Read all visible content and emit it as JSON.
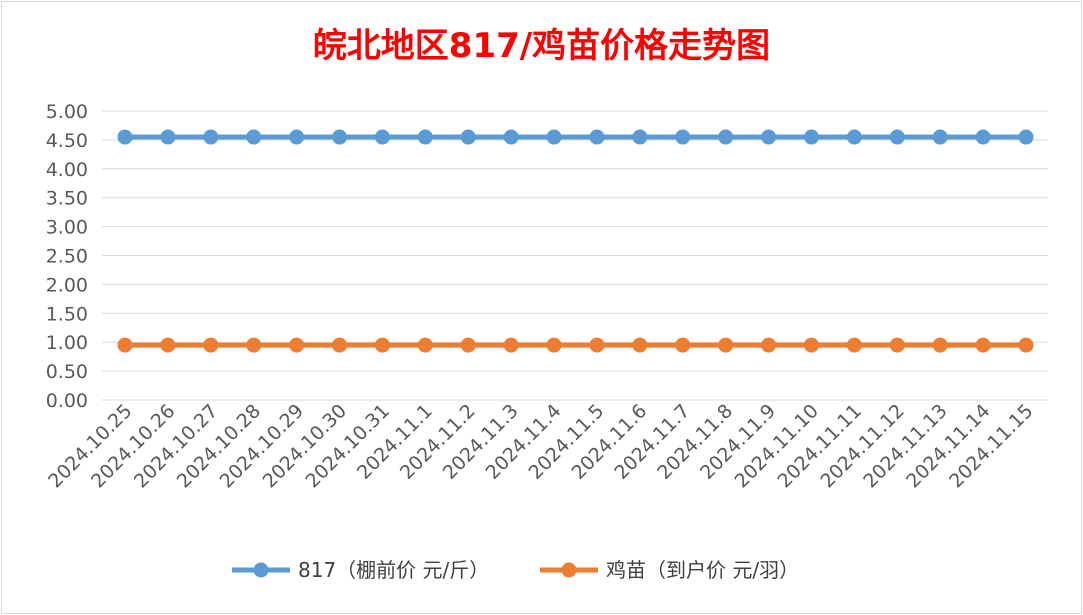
{
  "chart_data": {
    "type": "line",
    "title": "皖北地区817/鸡苗价格走势图",
    "xlabel": "",
    "ylabel": "",
    "categories": [
      "2024.10.25",
      "2024.10.26",
      "2024.10.27",
      "2024.10.28",
      "2024.10.29",
      "2024.10.30",
      "2024.10.31",
      "2024.11.1",
      "2024.11.2",
      "2024.11.3",
      "2024.11.4",
      "2024.11.5",
      "2024.11.6",
      "2024.11.7",
      "2024.11.8",
      "2024.11.9",
      "2024.11.10",
      "2024.11.11",
      "2024.11.12",
      "2024.11.13",
      "2024.11.14",
      "2024.11.15"
    ],
    "y_ticks": [
      "0.00",
      "0.50",
      "1.00",
      "1.50",
      "2.00",
      "2.50",
      "3.00",
      "3.50",
      "4.00",
      "4.50",
      "5.00"
    ],
    "ylim": [
      0,
      5
    ],
    "grid": true,
    "legend_position": "bottom",
    "series": [
      {
        "name": "817（棚前价 元/斤）",
        "color": "#5b9bd5",
        "values": [
          4.55,
          4.55,
          4.55,
          4.55,
          4.55,
          4.55,
          4.55,
          4.55,
          4.55,
          4.55,
          4.55,
          4.55,
          4.55,
          4.55,
          4.55,
          4.55,
          4.55,
          4.55,
          4.55,
          4.55,
          4.55,
          4.55
        ]
      },
      {
        "name": "鸡苗（到户价 元/羽）",
        "color": "#ed7d31",
        "values": [
          0.95,
          0.95,
          0.95,
          0.95,
          0.95,
          0.95,
          0.95,
          0.95,
          0.95,
          0.95,
          0.95,
          0.95,
          0.95,
          0.95,
          0.95,
          0.95,
          0.95,
          0.95,
          0.95,
          0.95,
          0.95,
          0.95
        ]
      }
    ]
  }
}
